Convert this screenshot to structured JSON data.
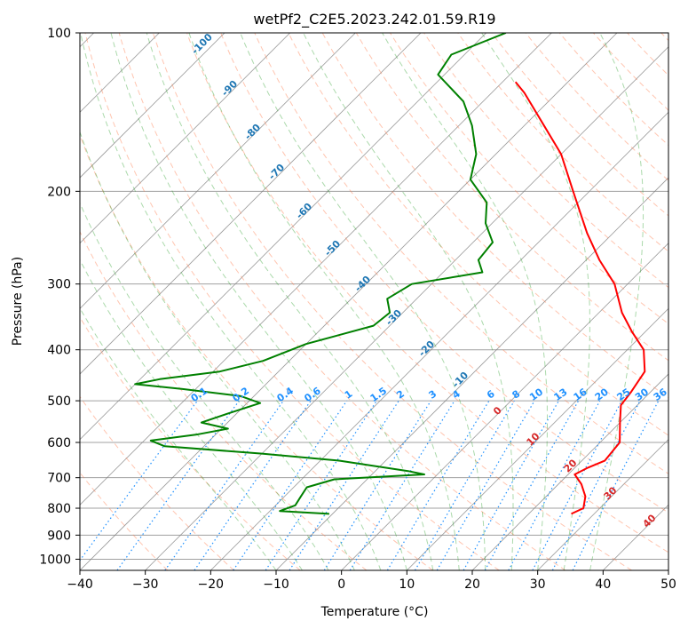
{
  "chart_data": {
    "type": "line",
    "subtype": "skew-T log-p diagram",
    "title": "wetPf2_C2E5.2023.242.01.59.R19",
    "xlabel": "Temperature (°C)",
    "ylabel": "Pressure (hPa)",
    "xlim": [
      -40,
      50
    ],
    "ylim": [
      1050,
      100
    ],
    "y_scale": "log",
    "x_ticks": [
      -40,
      -30,
      -20,
      -10,
      0,
      10,
      20,
      30,
      40,
      50
    ],
    "x_tick_labels": [
      "−40",
      "−30",
      "−20",
      "−10",
      "0",
      "10",
      "20",
      "30",
      "40",
      "50"
    ],
    "y_ticks": [
      100,
      200,
      300,
      400,
      500,
      600,
      700,
      800,
      900,
      1000
    ],
    "y_tick_labels": [
      "100",
      "200",
      "300",
      "400",
      "500",
      "600",
      "700",
      "800",
      "900",
      "1000"
    ],
    "grid": true,
    "series": [
      {
        "role": "temperature",
        "color": "#ff0000",
        "points": [
          {
            "p": 820,
            "t": 26.5
          },
          {
            "p": 800,
            "t": 27.5
          },
          {
            "p": 760,
            "t": 26.0
          },
          {
            "p": 720,
            "t": 23.5
          },
          {
            "p": 690,
            "t": 21.0
          },
          {
            "p": 670,
            "t": 22.0
          },
          {
            "p": 650,
            "t": 23.5
          },
          {
            "p": 600,
            "t": 23.0
          },
          {
            "p": 550,
            "t": 20.0
          },
          {
            "p": 510,
            "t": 17.5
          },
          {
            "p": 480,
            "t": 17.0
          },
          {
            "p": 440,
            "t": 16.0
          },
          {
            "p": 400,
            "t": 12.5
          },
          {
            "p": 370,
            "t": 8.0
          },
          {
            "p": 340,
            "t": 3.5
          },
          {
            "p": 300,
            "t": -2.0
          },
          {
            "p": 270,
            "t": -8.0
          },
          {
            "p": 240,
            "t": -14.0
          },
          {
            "p": 200,
            "t": -22.5
          },
          {
            "p": 170,
            "t": -30.0
          },
          {
            "p": 150,
            "t": -37.0
          },
          {
            "p": 130,
            "t": -45.0
          },
          {
            "p": 124,
            "t": -48.0
          }
        ]
      },
      {
        "role": "dewpoint",
        "color": "#008000",
        "points": [
          {
            "p": 820,
            "t": -10.5
          },
          {
            "p": 810,
            "t": -18.5
          },
          {
            "p": 790,
            "t": -17.0
          },
          {
            "p": 760,
            "t": -17.5
          },
          {
            "p": 730,
            "t": -18.0
          },
          {
            "p": 705,
            "t": -15.0
          },
          {
            "p": 690,
            "t": -2.0
          },
          {
            "p": 680,
            "t": -5.0
          },
          {
            "p": 650,
            "t": -17.0
          },
          {
            "p": 630,
            "t": -30.0
          },
          {
            "p": 610,
            "t": -46.0
          },
          {
            "p": 595,
            "t": -49.0
          },
          {
            "p": 580,
            "t": -43.0
          },
          {
            "p": 565,
            "t": -39.0
          },
          {
            "p": 550,
            "t": -44.0
          },
          {
            "p": 530,
            "t": -41.5
          },
          {
            "p": 505,
            "t": -38.0
          },
          {
            "p": 490,
            "t": -42.0
          },
          {
            "p": 475,
            "t": -52.0
          },
          {
            "p": 465,
            "t": -60.0
          },
          {
            "p": 455,
            "t": -57.0
          },
          {
            "p": 440,
            "t": -49.0
          },
          {
            "p": 420,
            "t": -44.0
          },
          {
            "p": 390,
            "t": -40.0
          },
          {
            "p": 360,
            "t": -32.5
          },
          {
            "p": 340,
            "t": -32.0
          },
          {
            "p": 320,
            "t": -34.5
          },
          {
            "p": 300,
            "t": -33.0
          },
          {
            "p": 285,
            "t": -24.0
          },
          {
            "p": 270,
            "t": -26.5
          },
          {
            "p": 250,
            "t": -27.0
          },
          {
            "p": 230,
            "t": -31.0
          },
          {
            "p": 210,
            "t": -34.0
          },
          {
            "p": 190,
            "t": -40.0
          },
          {
            "p": 170,
            "t": -43.0
          },
          {
            "p": 150,
            "t": -48.0
          },
          {
            "p": 135,
            "t": -53.0
          },
          {
            "p": 120,
            "t": -61.0
          },
          {
            "p": 110,
            "t": -62.0
          },
          {
            "p": 100,
            "t": -57.0
          }
        ]
      }
    ],
    "dry_adiabat_labels": [
      "0",
      "10",
      "20",
      "30",
      "40"
    ],
    "moist_adiabat_labels": [
      "-100",
      "-90",
      "-80",
      "-70",
      "-60",
      "-50",
      "-40",
      "-30",
      "-20",
      "-10"
    ],
    "mixing_ratio_labels": [
      "0.1",
      "0.2",
      "0.4",
      "0.6",
      "1",
      "1.5",
      "2",
      "3",
      "4",
      "6",
      "8",
      "10",
      "13",
      "16",
      "20",
      "25",
      "30",
      "36"
    ],
    "mixing_ratio_values": [
      0.1,
      0.2,
      0.4,
      0.6,
      1,
      1.5,
      2,
      3,
      4,
      6,
      8,
      10,
      13,
      16,
      20,
      25,
      30,
      36
    ],
    "colors": {
      "temperature": "#ff0000",
      "dewpoint": "#008000",
      "dry_adiabats": "#ff7f50",
      "moist_adiabats": "#2ca02c",
      "mixing_ratio": "#1e90ff",
      "isotherms": "#808080",
      "isobars": "#a0a0a0"
    }
  }
}
